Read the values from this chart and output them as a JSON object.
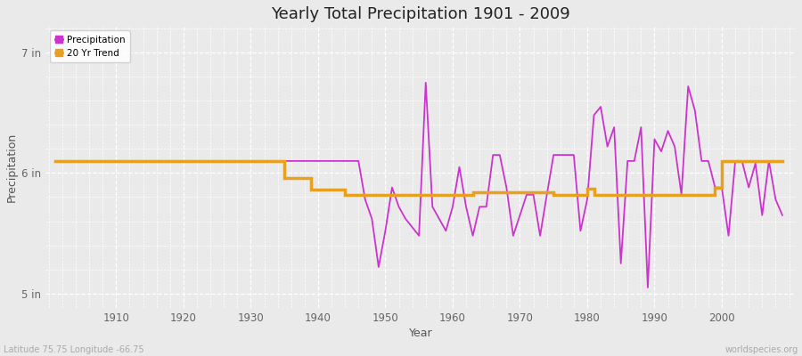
{
  "title": "Yearly Total Precipitation 1901 - 2009",
  "xlabel": "Year",
  "ylabel": "Precipitation",
  "y_ticks": [
    5,
    6,
    7
  ],
  "y_tick_labels": [
    "5 in",
    "6 in",
    "7 in"
  ],
  "ylim": [
    4.88,
    7.22
  ],
  "xlim": [
    1899.5,
    2011
  ],
  "x_ticks": [
    1910,
    1920,
    1930,
    1940,
    1950,
    1960,
    1970,
    1980,
    1990,
    2000
  ],
  "bg_color": "#eaeaea",
  "grid_color": "#ffffff",
  "precip_color": "#cc33cc",
  "trend_color": "#e8a020",
  "subtitle_left": "Latitude 75.75 Longitude -66.75",
  "subtitle_right": "worldspecies.org",
  "precip_label": "Precipitation",
  "trend_label": "20 Yr Trend",
  "years": [
    1901,
    1902,
    1903,
    1904,
    1905,
    1906,
    1907,
    1908,
    1909,
    1910,
    1911,
    1912,
    1913,
    1914,
    1915,
    1916,
    1917,
    1918,
    1919,
    1920,
    1921,
    1922,
    1923,
    1924,
    1925,
    1926,
    1927,
    1928,
    1929,
    1930,
    1931,
    1932,
    1933,
    1934,
    1935,
    1936,
    1937,
    1938,
    1939,
    1940,
    1941,
    1942,
    1943,
    1944,
    1945,
    1946,
    1947,
    1948,
    1949,
    1950,
    1951,
    1952,
    1953,
    1954,
    1955,
    1956,
    1957,
    1958,
    1959,
    1960,
    1961,
    1962,
    1963,
    1964,
    1965,
    1966,
    1967,
    1968,
    1969,
    1970,
    1971,
    1972,
    1973,
    1974,
    1975,
    1976,
    1977,
    1978,
    1979,
    1980,
    1981,
    1982,
    1983,
    1984,
    1985,
    1986,
    1987,
    1988,
    1989,
    1990,
    1991,
    1992,
    1993,
    1994,
    1995,
    1996,
    1997,
    1998,
    1999,
    2000,
    2001,
    2002,
    2003,
    2004,
    2005,
    2006,
    2007,
    2008,
    2009
  ],
  "precip_values": [
    6.1,
    6.1,
    6.1,
    6.1,
    6.1,
    6.1,
    6.1,
    6.1,
    6.1,
    6.1,
    6.1,
    6.1,
    6.1,
    6.1,
    6.1,
    6.1,
    6.1,
    6.1,
    6.1,
    6.1,
    6.1,
    6.1,
    6.1,
    6.1,
    6.1,
    6.1,
    6.1,
    6.1,
    6.1,
    6.1,
    6.1,
    6.1,
    6.1,
    6.1,
    6.1,
    6.1,
    6.1,
    6.1,
    6.1,
    6.1,
    6.1,
    6.1,
    6.1,
    6.1,
    6.1,
    6.1,
    5.78,
    5.62,
    5.22,
    5.52,
    5.88,
    5.72,
    5.62,
    5.55,
    5.48,
    6.75,
    5.72,
    5.62,
    5.52,
    5.72,
    6.05,
    5.72,
    5.48,
    5.72,
    5.72,
    6.15,
    6.15,
    5.88,
    5.48,
    5.65,
    5.82,
    5.82,
    5.48,
    5.82,
    6.15,
    6.15,
    6.15,
    6.15,
    5.52,
    5.78,
    6.48,
    6.55,
    6.22,
    6.38,
    5.25,
    6.1,
    6.1,
    6.38,
    5.05,
    6.28,
    6.18,
    6.35,
    6.22,
    5.82,
    6.72,
    6.52,
    6.1,
    6.1,
    5.88,
    5.88,
    5.48,
    6.1,
    6.1,
    5.88,
    6.08,
    5.65,
    6.1,
    5.78,
    5.65
  ],
  "trend_segments": [
    {
      "x": [
        1901,
        1946
      ],
      "y": [
        6.1,
        6.1
      ]
    },
    {
      "x": [
        1936,
        1937
      ],
      "y": [
        6.1,
        5.96
      ]
    },
    {
      "x": [
        1937,
        1943
      ],
      "y": [
        5.96,
        5.96
      ]
    },
    {
      "x": [
        1943,
        1944
      ],
      "y": [
        5.96,
        5.84
      ]
    },
    {
      "x": [
        1944,
        1946
      ],
      "y": [
        5.84,
        5.84
      ]
    },
    {
      "x": [
        1946,
        1946
      ],
      "y": [
        5.84,
        5.84
      ]
    }
  ],
  "trend_data_x": [
    1901,
    1935,
    1935,
    1939,
    1939,
    1944,
    1944,
    1946,
    1946,
    1963,
    1963,
    1975,
    1975,
    1980,
    1980,
    1981,
    1981,
    1999,
    1999,
    2000,
    2000,
    2009
  ],
  "trend_data_y": [
    6.1,
    6.1,
    5.96,
    5.96,
    5.86,
    5.86,
    5.82,
    5.82,
    5.82,
    5.82,
    5.84,
    5.84,
    5.82,
    5.82,
    5.87,
    5.87,
    5.82,
    5.82,
    5.88,
    5.88,
    6.1,
    6.1
  ]
}
